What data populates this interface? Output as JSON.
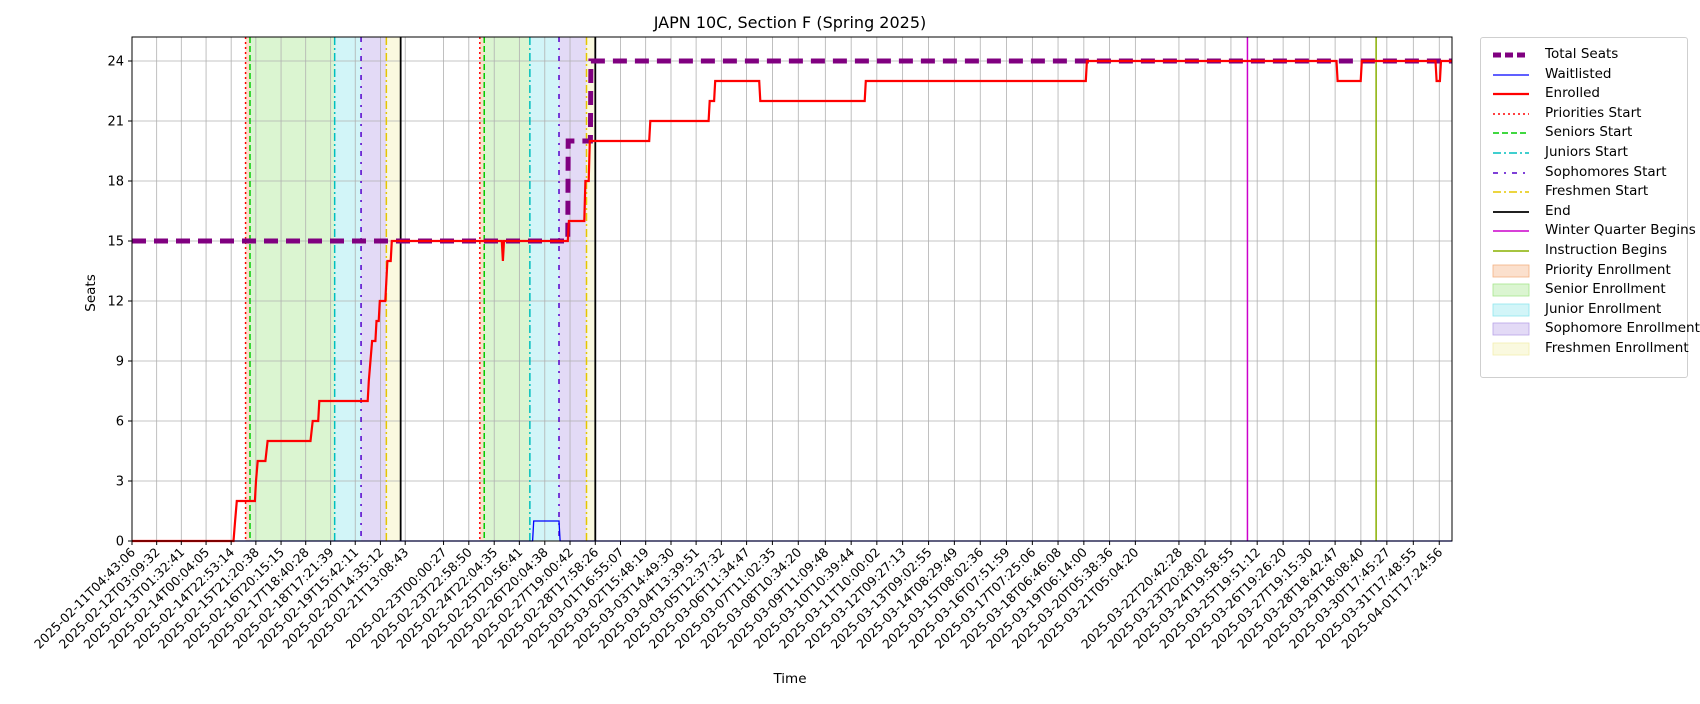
{
  "chart_data": {
    "type": "line",
    "title": "JAPN 10C, Section F (Spring 2025)",
    "xlabel": "Time",
    "ylabel": "Seats",
    "x_axis": "date",
    "xlim": [
      "2025-02-11T04:43:06",
      "2025-04-02T05:00:00"
    ],
    "ylim": [
      0,
      25.2
    ],
    "y_ticks": [
      0,
      3,
      6,
      9,
      12,
      15,
      18,
      21,
      24
    ],
    "x_tick_labels": [
      "2025-02-11T04:43:06",
      "2025-02-12T03:09:32",
      "2025-02-13T01:32:41",
      "2025-02-14T00:04:05",
      "2025-02-14T22:53:14",
      "2025-02-15T21:20:38",
      "2025-02-16T20:15:15",
      "2025-02-17T18:40:28",
      "2025-02-18T17:21:39",
      "2025-02-19T15:42:11",
      "2025-02-20T14:35:12",
      "2025-02-21T13:08:43",
      "2025-02-23T00:00:27",
      "2025-02-23T22:58:50",
      "2025-02-24T22:04:35",
      "2025-02-25T20:56:41",
      "2025-02-26T20:04:38",
      "2025-02-27T19:00:42",
      "2025-02-28T17:58:26",
      "2025-03-01T16:55:07",
      "2025-03-02T15:48:19",
      "2025-03-03T14:49:30",
      "2025-03-04T13:39:51",
      "2025-03-05T12:37:32",
      "2025-03-06T11:34:47",
      "2025-03-07T11:02:35",
      "2025-03-08T10:34:20",
      "2025-03-09T11:09:48",
      "2025-03-10T10:39:44",
      "2025-03-11T10:00:02",
      "2025-03-12T09:27:13",
      "2025-03-13T09:02:55",
      "2025-03-14T08:29:49",
      "2025-03-15T08:02:36",
      "2025-03-16T07:51:59",
      "2025-03-17T07:25:06",
      "2025-03-18T06:46:08",
      "2025-03-19T06:14:00",
      "2025-03-20T05:38:36",
      "2025-03-21T05:04:20",
      "2025-03-22T20:42:28",
      "2025-03-23T20:28:02",
      "2025-03-24T19:58:55",
      "2025-03-25T19:51:12",
      "2025-03-26T19:26:20",
      "2025-03-27T19:15:30",
      "2025-03-28T18:42:47",
      "2025-03-29T18:08:40",
      "2025-03-30T17:45:27",
      "2025-03-31T17:48:55",
      "2025-04-01T17:24:56"
    ],
    "grid": true,
    "legend_position": "outside-right",
    "series": [
      {
        "name": "Total Seats",
        "color": "#800080",
        "style": "dashed-thick",
        "points": [
          [
            "2025-02-11T04:43:06",
            15
          ],
          [
            "2025-02-27T17:00:00",
            15
          ],
          [
            "2025-02-27T17:20:00",
            20
          ],
          [
            "2025-02-28T13:30:00",
            20
          ],
          [
            "2025-02-28T14:00:00",
            24
          ],
          [
            "2025-04-02T05:00:00",
            24
          ]
        ]
      },
      {
        "name": "Waitlisted",
        "color": "#0000ff",
        "style": "solid",
        "points": [
          [
            "2025-02-11T04:43:06",
            0
          ],
          [
            "2025-02-26T09:00:00",
            0
          ],
          [
            "2025-02-26T10:00:00",
            1
          ],
          [
            "2025-02-27T09:00:00",
            1
          ],
          [
            "2025-02-27T10:00:00",
            0
          ],
          [
            "2025-04-02T05:00:00",
            0
          ]
        ]
      },
      {
        "name": "Enrolled",
        "color": "#ff0000",
        "style": "solid-thick",
        "points": [
          [
            "2025-02-11T04:43:06",
            0
          ],
          [
            "2025-02-15T01:00:00",
            0
          ],
          [
            "2025-02-15T02:30:00",
            1
          ],
          [
            "2025-02-15T04:00:00",
            2
          ],
          [
            "2025-02-15T20:30:00",
            2
          ],
          [
            "2025-02-15T21:30:00",
            3
          ],
          [
            "2025-02-15T23:00:00",
            4
          ],
          [
            "2025-02-16T06:00:00",
            4
          ],
          [
            "2025-02-16T08:00:00",
            5
          ],
          [
            "2025-02-17T23:00:00",
            5
          ],
          [
            "2025-02-18T01:00:00",
            6
          ],
          [
            "2025-02-18T06:00:00",
            6
          ],
          [
            "2025-02-18T07:00:00",
            7
          ],
          [
            "2025-02-20T03:00:00",
            7
          ],
          [
            "2025-02-20T04:00:00",
            8
          ],
          [
            "2025-02-20T07:00:00",
            10
          ],
          [
            "2025-02-20T10:00:00",
            10
          ],
          [
            "2025-02-20T11:00:00",
            11
          ],
          [
            "2025-02-20T13:00:00",
            11
          ],
          [
            "2025-02-20T14:00:00",
            12
          ],
          [
            "2025-02-20T19:00:00",
            12
          ],
          [
            "2025-02-20T21:00:00",
            14
          ],
          [
            "2025-02-21T00:00:00",
            14
          ],
          [
            "2025-02-21T01:00:00",
            15
          ],
          [
            "2025-02-25T05:00:00",
            15
          ],
          [
            "2025-02-25T06:00:00",
            14
          ],
          [
            "2025-02-25T07:00:00",
            15
          ],
          [
            "2025-02-27T17:00:00",
            15
          ],
          [
            "2025-02-27T18:00:00",
            16
          ],
          [
            "2025-02-28T08:00:00",
            16
          ],
          [
            "2025-02-28T09:00:00",
            18
          ],
          [
            "2025-02-28T12:00:00",
            18
          ],
          [
            "2025-02-28T13:00:00",
            20
          ],
          [
            "2025-03-02T19:00:00",
            20
          ],
          [
            "2025-03-02T20:00:00",
            21
          ],
          [
            "2025-03-05T01:00:00",
            21
          ],
          [
            "2025-03-05T02:00:00",
            22
          ],
          [
            "2025-03-05T06:00:00",
            22
          ],
          [
            "2025-03-05T07:00:00",
            23
          ],
          [
            "2025-03-06T23:00:00",
            23
          ],
          [
            "2025-03-07T00:00:00",
            22
          ],
          [
            "2025-03-10T23:00:00",
            22
          ],
          [
            "2025-03-11T00:00:00",
            23
          ],
          [
            "2025-03-19T08:00:00",
            23
          ],
          [
            "2025-03-19T09:00:00",
            24
          ],
          [
            "2025-03-28T20:00:00",
            24
          ],
          [
            "2025-03-28T21:00:00",
            23
          ],
          [
            "2025-03-29T18:00:00",
            23
          ],
          [
            "2025-03-29T19:00:00",
            24
          ],
          [
            "2025-04-01T14:00:00",
            24
          ],
          [
            "2025-04-01T15:00:00",
            23
          ],
          [
            "2025-04-01T18:00:00",
            23
          ],
          [
            "2025-04-01T19:00:00",
            24
          ],
          [
            "2025-04-02T05:00:00",
            24
          ]
        ]
      }
    ],
    "vertical_lines": [
      {
        "name": "Priorities Start",
        "color": "#ff0000",
        "style": "dotted",
        "x": [
          "2025-02-15T12:00:00",
          "2025-02-24T09:00:00"
        ]
      },
      {
        "name": "Seniors Start",
        "color": "#00cc00",
        "style": "dashed",
        "x": [
          "2025-02-15T16:00:00",
          "2025-02-24T13:00:00"
        ]
      },
      {
        "name": "Juniors Start",
        "color": "#00bfbf",
        "style": "dashdot",
        "x": [
          "2025-02-18T21:00:00",
          "2025-02-26T06:30:00"
        ]
      },
      {
        "name": "Sophomores Start",
        "color": "#5500cc",
        "style": "dashdot2",
        "x": [
          "2025-02-19T21:00:00",
          "2025-02-27T09:00:00"
        ]
      },
      {
        "name": "Freshmen Start",
        "color": "#e6c700",
        "style": "dashdot",
        "x": [
          "2025-02-20T20:00:00",
          "2025-02-28T10:00:00"
        ]
      },
      {
        "name": "End",
        "color": "#000000",
        "style": "solid",
        "x": [
          "2025-02-21T09:00:00",
          "2025-02-28T18:00:00"
        ]
      },
      {
        "name": "Winter Quarter Begins",
        "color": "#cc00cc",
        "style": "solid",
        "x": [
          "2025-03-25T11:00:00"
        ]
      },
      {
        "name": "Instruction Begins",
        "color": "#88b000",
        "style": "solid",
        "x": [
          "2025-03-30T08:00:00"
        ]
      }
    ],
    "shaded_regions": [
      {
        "name": "Priority Enrollment",
        "color": "#f4b183",
        "ranges": [
          [
            "2025-02-15T12:00:00",
            "2025-02-15T16:00:00"
          ],
          [
            "2025-02-24T09:00:00",
            "2025-02-24T13:00:00"
          ]
        ]
      },
      {
        "name": "Senior Enrollment",
        "color": "#a6e78c",
        "ranges": [
          [
            "2025-02-15T16:00:00",
            "2025-02-18T21:00:00"
          ],
          [
            "2025-02-24T13:00:00",
            "2025-02-26T06:30:00"
          ]
        ]
      },
      {
        "name": "Junior Enrollment",
        "color": "#8fe6ee",
        "ranges": [
          [
            "2025-02-18T21:00:00",
            "2025-02-19T21:00:00"
          ],
          [
            "2025-02-26T06:30:00",
            "2025-02-27T09:00:00"
          ]
        ]
      },
      {
        "name": "Sophomore Enrollment",
        "color": "#b9a3e8",
        "ranges": [
          [
            "2025-02-19T21:00:00",
            "2025-02-20T20:00:00"
          ],
          [
            "2025-02-27T09:00:00",
            "2025-02-28T10:00:00"
          ]
        ]
      },
      {
        "name": "Freshmen Enrollment",
        "color": "#f3efb0",
        "ranges": [
          [
            "2025-02-20T20:00:00",
            "2025-02-21T09:00:00"
          ],
          [
            "2025-02-28T10:00:00",
            "2025-02-28T18:00:00"
          ]
        ]
      }
    ],
    "legend_entries": [
      {
        "label": "Total Seats",
        "kind": "line",
        "color": "#800080",
        "dash": "8,4",
        "width": 5
      },
      {
        "label": "Waitlisted",
        "kind": "line",
        "color": "#0000ff",
        "dash": "",
        "width": 1.3
      },
      {
        "label": "Enrolled",
        "kind": "line",
        "color": "#ff0000",
        "dash": "",
        "width": 2.2
      },
      {
        "label": "Priorities Start",
        "kind": "line",
        "color": "#ff0000",
        "dash": "2,3",
        "width": 1.5
      },
      {
        "label": "Seniors Start",
        "kind": "line",
        "color": "#00cc00",
        "dash": "6,3",
        "width": 1.5
      },
      {
        "label": "Juniors Start",
        "kind": "line",
        "color": "#00bfbf",
        "dash": "8,3,2,3",
        "width": 1.5
      },
      {
        "label": "Sophomores Start",
        "kind": "line",
        "color": "#5500cc",
        "dash": "5,6,2,6",
        "width": 1.5
      },
      {
        "label": "Freshmen Start",
        "kind": "line",
        "color": "#e6c700",
        "dash": "8,3,2,3",
        "width": 1.5
      },
      {
        "label": "End",
        "kind": "line",
        "color": "#000000",
        "dash": "",
        "width": 1.8
      },
      {
        "label": "Winter Quarter Begins",
        "kind": "line",
        "color": "#cc00cc",
        "dash": "",
        "width": 1.5
      },
      {
        "label": "Instruction Begins",
        "kind": "line",
        "color": "#88b000",
        "dash": "",
        "width": 1.5
      },
      {
        "label": "Priority Enrollment",
        "kind": "patch",
        "color": "#f4b183"
      },
      {
        "label": "Senior Enrollment",
        "kind": "patch",
        "color": "#a6e78c"
      },
      {
        "label": "Junior Enrollment",
        "kind": "patch",
        "color": "#8fe6ee"
      },
      {
        "label": "Sophomore Enrollment",
        "kind": "patch",
        "color": "#b9a3e8"
      },
      {
        "label": "Freshmen Enrollment",
        "kind": "patch",
        "color": "#f3efb0"
      }
    ]
  }
}
